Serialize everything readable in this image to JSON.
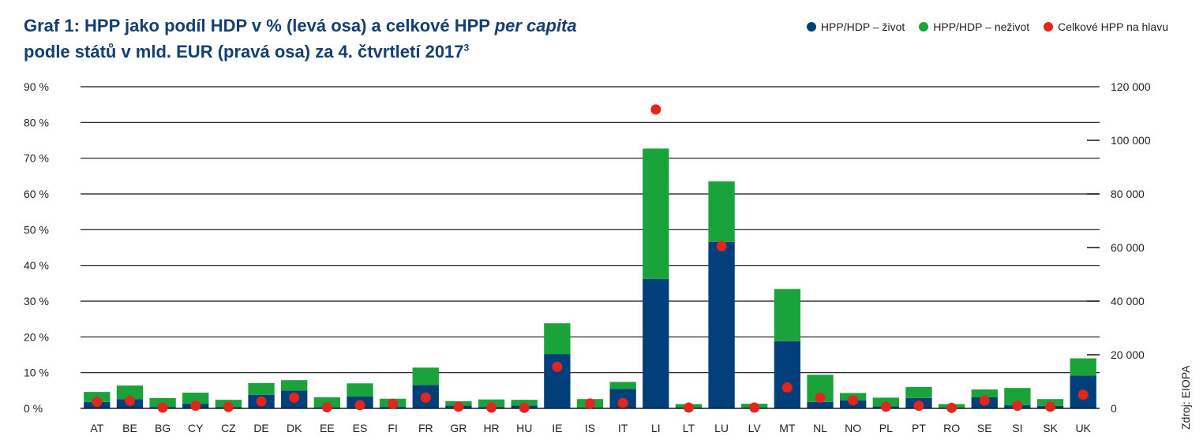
{
  "title": {
    "part1": "Graf 1: HPP jako podíl HDP v % (levá osa) a celkové HPP ",
    "italic": "per capita",
    "part2": "podle států v mld. EUR (pravá osa) za 4. čtvrtletí 2017",
    "superscript": "3"
  },
  "legend": [
    {
      "label": "HPP/HDP – život",
      "color": "#003f7a"
    },
    {
      "label": "HPP/HDP – neživot",
      "color": "#1aa33b"
    },
    {
      "label": "Celkové HPP na hlavu",
      "color": "#e3261b"
    }
  ],
  "source": "Zdroj: EIOPA",
  "chart_data": {
    "type": "bar",
    "stacked": true,
    "categories": [
      "AT",
      "BE",
      "BG",
      "CY",
      "CZ",
      "DE",
      "DK",
      "EE",
      "ES",
      "FI",
      "FR",
      "GR",
      "HR",
      "HU",
      "IE",
      "IS",
      "IT",
      "LI",
      "LT",
      "LU",
      "LV",
      "MT",
      "NL",
      "NO",
      "PL",
      "PT",
      "RO",
      "SE",
      "SI",
      "SK",
      "UK"
    ],
    "series": [
      {
        "name": "HPP/HDP – život",
        "axis": "left",
        "color": "#003f7a",
        "values": [
          1.8,
          2.6,
          0.4,
          1.3,
          0.4,
          3.8,
          5.0,
          0.3,
          3.3,
          0.4,
          6.5,
          0.8,
          0.4,
          0.8,
          15.2,
          0.2,
          5.4,
          36.2,
          0.3,
          46.6,
          0.2,
          18.8,
          1.8,
          2.2,
          0.6,
          2.9,
          0.2,
          3.1,
          0.9,
          0.7,
          9.2
        ]
      },
      {
        "name": "HPP/HDP – neživot",
        "axis": "left",
        "color": "#1aa33b",
        "values": [
          2.8,
          3.8,
          2.5,
          3.1,
          2.0,
          3.3,
          2.9,
          2.8,
          3.7,
          2.3,
          4.9,
          1.2,
          2.1,
          1.6,
          8.6,
          2.4,
          2.0,
          36.5,
          0.9,
          16.9,
          1.1,
          14.6,
          7.6,
          2.1,
          2.4,
          3.1,
          1.0,
          2.2,
          4.8,
          1.9,
          4.8
        ]
      },
      {
        "name": "Celkové HPP na hlavu",
        "axis": "right",
        "type": "scatter",
        "color": "#e3261b",
        "values": [
          2400,
          2800,
          300,
          1000,
          500,
          2600,
          4000,
          400,
          1200,
          1700,
          4000,
          600,
          300,
          200,
          15500,
          1800,
          2000,
          111500,
          300,
          60500,
          300,
          7800,
          4000,
          3000,
          600,
          1000,
          200,
          2900,
          1000,
          600,
          5100
        ]
      }
    ],
    "left_axis": {
      "ylim": [
        0,
        90
      ],
      "ticks": [
        "0 %",
        "10 %",
        "20 %",
        "30 %",
        "40 %",
        "50 %",
        "60 %",
        "70 %",
        "80 %",
        "90 %"
      ]
    },
    "right_axis": {
      "ylim": [
        0,
        120000
      ],
      "ticks": [
        "0",
        "20 000",
        "40 000",
        "60 000",
        "80 000",
        "100 000",
        "120 000"
      ]
    },
    "grid": true,
    "legend_position": "top-right"
  }
}
